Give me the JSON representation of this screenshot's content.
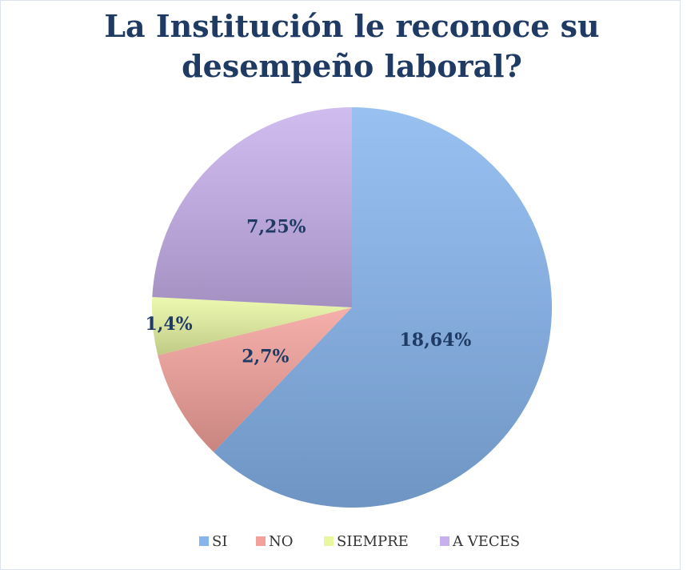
{
  "chart_data": {
    "type": "pie",
    "title": "La Institución le reconoce su desempeño laboral?",
    "categories": [
      "SI",
      "NO",
      "SIEMPRE",
      "A VECES"
    ],
    "values": [
      18.64,
      2.7,
      1.4,
      7.25
    ],
    "value_labels": [
      "18,64%",
      "2,7%",
      "1,4%",
      "7,25%"
    ],
    "colors": [
      "#86b5ee",
      "#f4a19b",
      "#e9f6a2",
      "#c8b0ec"
    ],
    "legend": "bottom"
  }
}
